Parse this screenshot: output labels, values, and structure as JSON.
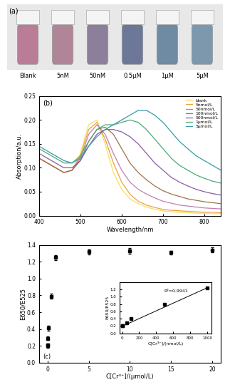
{
  "chart_data": [
    {
      "type": "vials",
      "annotations": [
        "(a)"
      ],
      "categories": [
        "Blank",
        "5nM",
        "50nM",
        "0.5μM",
        "1μM",
        "5μM"
      ],
      "colors": [
        "#b97d97",
        "#b08598",
        "#8c7f9c",
        "#6d7898",
        "#6f8aa3",
        "#7d98ad"
      ]
    },
    {
      "type": "line",
      "annotations": [
        "(b)"
      ],
      "x_label": "Wavelength/nm",
      "y_label": "Absorption/a.u.",
      "x": [
        400,
        420,
        440,
        460,
        480,
        500,
        520,
        540,
        560,
        580,
        600,
        620,
        640,
        660,
        680,
        700,
        720,
        740,
        760,
        780,
        800,
        820,
        840
      ],
      "series": [
        {
          "name": "blank",
          "color": "#f2e35a",
          "values": [
            0.12,
            0.11,
            0.1,
            0.09,
            0.095,
            0.13,
            0.19,
            0.2,
            0.15,
            0.09,
            0.055,
            0.035,
            0.025,
            0.018,
            0.013,
            0.01,
            0.008,
            0.007,
            0.006,
            0.005,
            0.005,
            0.004,
            0.004
          ]
        },
        {
          "name": "5nmol/L",
          "color": "#f0a040",
          "values": [
            0.12,
            0.11,
            0.1,
            0.09,
            0.095,
            0.125,
            0.18,
            0.195,
            0.16,
            0.11,
            0.07,
            0.045,
            0.03,
            0.022,
            0.017,
            0.013,
            0.011,
            0.01,
            0.009,
            0.008,
            0.007,
            0.007,
            0.006
          ]
        },
        {
          "name": "50nmol/L",
          "color": "#c080b0",
          "values": [
            0.12,
            0.11,
            0.1,
            0.09,
            0.095,
            0.12,
            0.17,
            0.19,
            0.17,
            0.13,
            0.095,
            0.07,
            0.055,
            0.045,
            0.037,
            0.03,
            0.026,
            0.022,
            0.02,
            0.018,
            0.016,
            0.015,
            0.014
          ]
        },
        {
          "name": "100nmol/L",
          "color": "#a0704a",
          "values": [
            0.12,
            0.11,
            0.1,
            0.09,
            0.095,
            0.115,
            0.155,
            0.18,
            0.185,
            0.17,
            0.14,
            0.11,
            0.09,
            0.075,
            0.062,
            0.052,
            0.045,
            0.04,
            0.035,
            0.032,
            0.029,
            0.027,
            0.025
          ]
        },
        {
          "name": "500nmol/L",
          "color": "#8a5aa8",
          "values": [
            0.13,
            0.12,
            0.11,
            0.1,
            0.1,
            0.115,
            0.145,
            0.17,
            0.18,
            0.18,
            0.175,
            0.165,
            0.15,
            0.13,
            0.11,
            0.095,
            0.08,
            0.07,
            0.062,
            0.055,
            0.05,
            0.046,
            0.043
          ]
        },
        {
          "name": "1μmol/L",
          "color": "#4aa878",
          "values": [
            0.14,
            0.13,
            0.12,
            0.11,
            0.11,
            0.125,
            0.155,
            0.18,
            0.19,
            0.19,
            0.195,
            0.2,
            0.195,
            0.18,
            0.16,
            0.14,
            0.12,
            0.105,
            0.095,
            0.085,
            0.078,
            0.072,
            0.068
          ]
        },
        {
          "name": "5μmol/L",
          "color": "#3a98a8",
          "values": [
            0.145,
            0.135,
            0.125,
            0.115,
            0.11,
            0.12,
            0.145,
            0.165,
            0.18,
            0.19,
            0.2,
            0.21,
            0.22,
            0.22,
            0.21,
            0.195,
            0.175,
            0.155,
            0.14,
            0.125,
            0.115,
            0.105,
            0.095
          ]
        }
      ],
      "xlim": [
        400,
        840
      ],
      "xticks": [
        400,
        500,
        600,
        700,
        800
      ],
      "ylim": [
        0,
        0.25
      ],
      "yticks": [
        {
          "value": 0,
          "label": "0.00"
        },
        {
          "value": 0.05,
          "label": "0.05"
        },
        {
          "value": 0.1,
          "label": "0.10"
        },
        {
          "value": 0.15,
          "label": "0.15"
        },
        {
          "value": 0.2,
          "label": "0.20"
        },
        {
          "value": 0.25,
          "label": "0.25"
        }
      ],
      "legend": "upper right"
    },
    {
      "type": "scatter",
      "annotations": [
        "(c)"
      ],
      "x_label": "C[Cr³⁺]/(μmol/L)",
      "y_label": "E650/E525",
      "x": [
        0,
        0.005,
        0.05,
        0.1,
        0.5,
        1,
        5,
        10,
        15,
        20
      ],
      "values": [
        0.2,
        0.21,
        0.29,
        0.41,
        0.79,
        1.25,
        1.32,
        1.33,
        1.31,
        1.34
      ],
      "errors": [
        0.02,
        0.02,
        0.02,
        0.03,
        0.03,
        0.03,
        0.03,
        0.03,
        0.02,
        0.03
      ],
      "color": "#000000",
      "marker": "square",
      "xlim": [
        -1,
        21
      ],
      "xticks": [
        0,
        5,
        10,
        15,
        20
      ],
      "ylim": [
        0,
        1.4
      ],
      "yticks": [
        {
          "value": 0,
          "label": "0.0"
        },
        {
          "value": 0.2,
          "label": "0.2"
        },
        {
          "value": 0.4,
          "label": "0.4"
        },
        {
          "value": 0.6,
          "label": "0.6"
        },
        {
          "value": 0.8,
          "label": "0.8"
        },
        {
          "value": 1.0,
          "label": "1.0"
        },
        {
          "value": 1.2,
          "label": "1.2"
        },
        {
          "value": 1.4,
          "label": "1.4"
        }
      ]
    },
    {
      "type": "scatter",
      "annotations": [
        "R²=0.9941"
      ],
      "x_label": "C[Cr³⁺]/(nmol/L)",
      "y_label": "E650/E525",
      "series": [
        {
          "type": "scatter",
          "color": "#000000",
          "marker": "square",
          "x": [
            0,
            5,
            50,
            100,
            500,
            1000
          ],
          "values": [
            0.2,
            0.21,
            0.29,
            0.41,
            0.79,
            1.25
          ]
        },
        {
          "type": "line",
          "color": "#000000",
          "line_style": "solid",
          "x": [
            0,
            1000
          ],
          "values": [
            0.19,
            1.25
          ]
        }
      ],
      "xlim": [
        -30,
        1050
      ],
      "xticks": [
        0,
        200,
        400,
        600,
        800,
        1000
      ],
      "ylim": [
        0,
        1.4
      ],
      "yticks": [
        {
          "value": 0,
          "label": "0.0"
        },
        {
          "value": 0.2,
          "label": "0.2"
        },
        {
          "value": 0.4,
          "label": "0.4"
        },
        {
          "value": 0.6,
          "label": "0.6"
        },
        {
          "value": 0.8,
          "label": "0.8"
        },
        {
          "value": 1.0,
          "label": "1.0"
        },
        {
          "value": 1.2,
          "label": "1.2"
        }
      ]
    }
  ]
}
